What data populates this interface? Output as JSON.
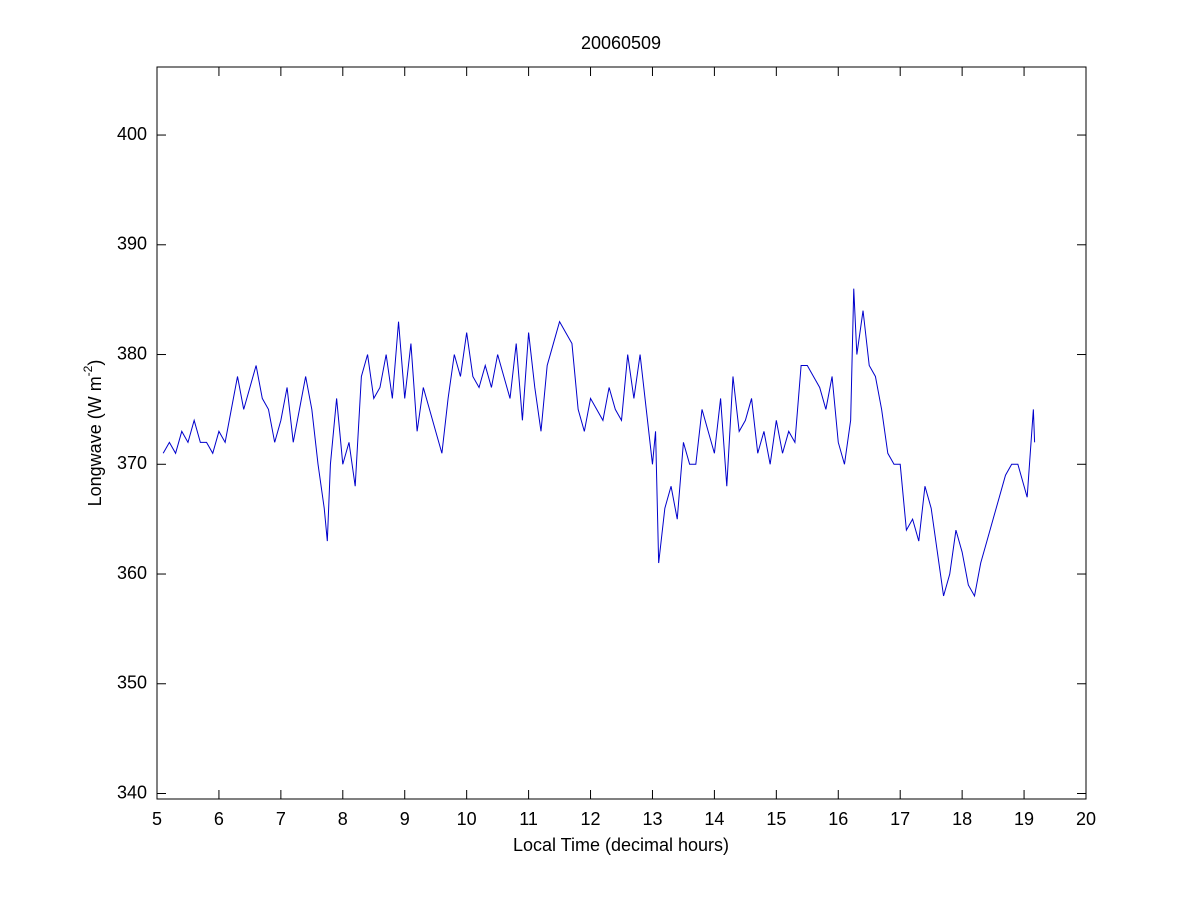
{
  "chart_data": {
    "type": "line",
    "title": "20060509",
    "xlabel": "Local Time (decimal hours)",
    "ylabel_parts": [
      "Longwave (W m",
      "-2",
      ")"
    ],
    "xlim": [
      5,
      20
    ],
    "ylim": [
      339.5,
      406.2
    ],
    "xticks": [
      5,
      6,
      7,
      8,
      9,
      10,
      11,
      12,
      13,
      14,
      15,
      16,
      17,
      18,
      19,
      20
    ],
    "yticks": [
      340,
      350,
      360,
      370,
      380,
      390,
      400
    ],
    "x": [
      5.1,
      5.2,
      5.3,
      5.4,
      5.5,
      5.6,
      5.7,
      5.8,
      5.9,
      6.0,
      6.1,
      6.2,
      6.3,
      6.4,
      6.5,
      6.6,
      6.7,
      6.8,
      6.9,
      7.0,
      7.1,
      7.2,
      7.3,
      7.4,
      7.5,
      7.6,
      7.7,
      7.75,
      7.8,
      7.9,
      8.0,
      8.1,
      8.2,
      8.3,
      8.4,
      8.5,
      8.6,
      8.7,
      8.8,
      8.9,
      9.0,
      9.1,
      9.2,
      9.3,
      9.4,
      9.5,
      9.6,
      9.7,
      9.8,
      9.9,
      10.0,
      10.1,
      10.2,
      10.3,
      10.4,
      10.5,
      10.6,
      10.7,
      10.8,
      10.9,
      11.0,
      11.1,
      11.2,
      11.3,
      11.4,
      11.5,
      11.6,
      11.7,
      11.8,
      11.9,
      12.0,
      12.1,
      12.2,
      12.3,
      12.4,
      12.5,
      12.6,
      12.7,
      12.8,
      12.9,
      13.0,
      13.05,
      13.1,
      13.2,
      13.3,
      13.4,
      13.5,
      13.6,
      13.7,
      13.8,
      13.9,
      14.0,
      14.1,
      14.2,
      14.3,
      14.4,
      14.5,
      14.6,
      14.7,
      14.8,
      14.9,
      15.0,
      15.1,
      15.2,
      15.3,
      15.4,
      15.5,
      15.6,
      15.7,
      15.8,
      15.9,
      16.0,
      16.1,
      16.2,
      16.25,
      16.3,
      16.4,
      16.5,
      16.6,
      16.7,
      16.8,
      16.9,
      17.0,
      17.1,
      17.2,
      17.3,
      17.4,
      17.5,
      17.6,
      17.7,
      17.8,
      17.9,
      18.0,
      18.1,
      18.2,
      18.3,
      18.4,
      18.5,
      18.6,
      18.7,
      18.8,
      18.9,
      19.0,
      19.05,
      19.1,
      19.15,
      19.17
    ],
    "series": [
      {
        "name": "Longwave",
        "color": "#0000cc",
        "values": [
          371,
          372,
          371,
          373,
          372,
          374,
          372,
          372,
          371,
          373,
          372,
          375,
          378,
          375,
          377,
          379,
          376,
          375,
          372,
          374,
          377,
          372,
          375,
          378,
          375,
          370,
          366,
          363,
          370,
          376,
          370,
          372,
          368,
          378,
          380,
          376,
          377,
          380,
          376,
          383,
          376,
          381,
          373,
          377,
          375,
          373,
          371,
          376,
          380,
          378,
          382,
          378,
          377,
          379,
          377,
          380,
          378,
          376,
          381,
          374,
          382,
          377,
          373,
          379,
          381,
          383,
          382,
          381,
          375,
          373,
          376,
          375,
          374,
          377,
          375,
          374,
          380,
          376,
          380,
          375,
          370,
          373,
          361,
          366,
          368,
          365,
          372,
          370,
          370,
          375,
          373,
          371,
          376,
          368,
          378,
          373,
          374,
          376,
          371,
          373,
          370,
          374,
          371,
          373,
          372,
          379,
          379,
          378,
          377,
          375,
          378,
          372,
          370,
          374,
          386,
          380,
          384,
          379,
          378,
          375,
          371,
          370,
          370,
          364,
          365,
          363,
          368,
          366,
          362,
          358,
          360,
          364,
          362,
          359,
          358,
          361,
          363,
          365,
          367,
          369,
          370,
          370,
          368,
          367,
          371,
          375,
          372
        ]
      }
    ]
  }
}
